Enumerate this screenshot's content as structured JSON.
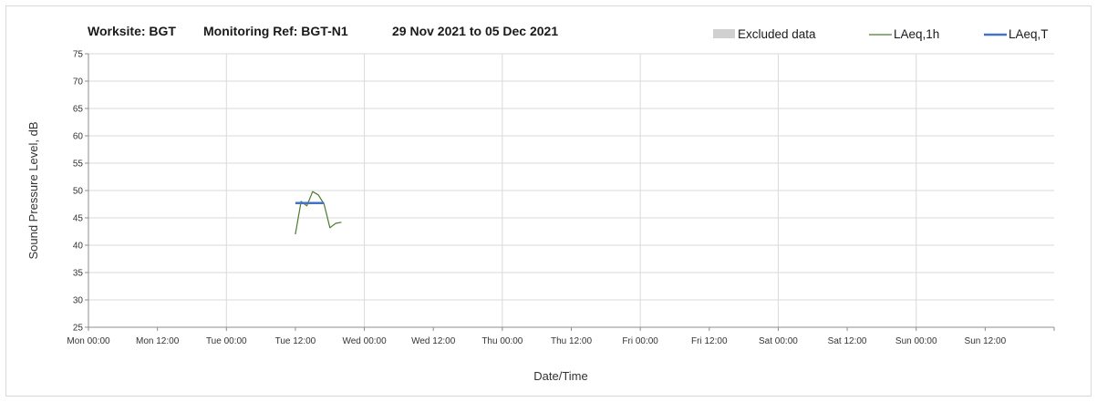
{
  "title": {
    "worksite": "Worksite: BGT",
    "monitoring_ref": "Monitoring Ref: BGT-N1",
    "period": "29 Nov 2021 to 05 Dec 2021"
  },
  "legend": {
    "excluded": "Excluded data",
    "laeq1h": "LAeq,1h",
    "laeqT": "LAeq,T"
  },
  "colors": {
    "excluded": "#d0d0d0",
    "laeq1h": "#4e7a2c",
    "laeqT": "#4472c4",
    "grid": "#d9d9d9",
    "axis": "#8c8c8c"
  },
  "chart_data": {
    "type": "line",
    "xlabel": "Date/Time",
    "ylabel": "Sound Pressure Level, dB",
    "ylim": [
      25,
      75
    ],
    "xlim_hours": [
      0,
      168
    ],
    "legend_position": "top-right",
    "grid": true,
    "x_ticks": [
      "Mon 00:00",
      "Mon 12:00",
      "Tue 00:00",
      "Tue 12:00",
      "Wed 00:00",
      "Wed 12:00",
      "Thu 00:00",
      "Thu 12:00",
      "Fri 00:00",
      "Fri 12:00",
      "Sat 00:00",
      "Sat 12:00",
      "Sun 00:00",
      "Sun 12:00"
    ],
    "y_ticks": [
      25,
      30,
      35,
      40,
      45,
      50,
      55,
      60,
      65,
      70,
      75
    ],
    "series": [
      {
        "name": "LAeq,1h",
        "x_hours": [
          36,
          37,
          38,
          39,
          40,
          41,
          42,
          43,
          44
        ],
        "values": [
          42.0,
          48.0,
          47.2,
          49.8,
          49.2,
          47.5,
          43.2,
          44.0,
          44.2
        ]
      },
      {
        "name": "LAeq,T",
        "x_hours": [
          36,
          41
        ],
        "values": [
          47.7,
          47.7
        ]
      }
    ]
  }
}
